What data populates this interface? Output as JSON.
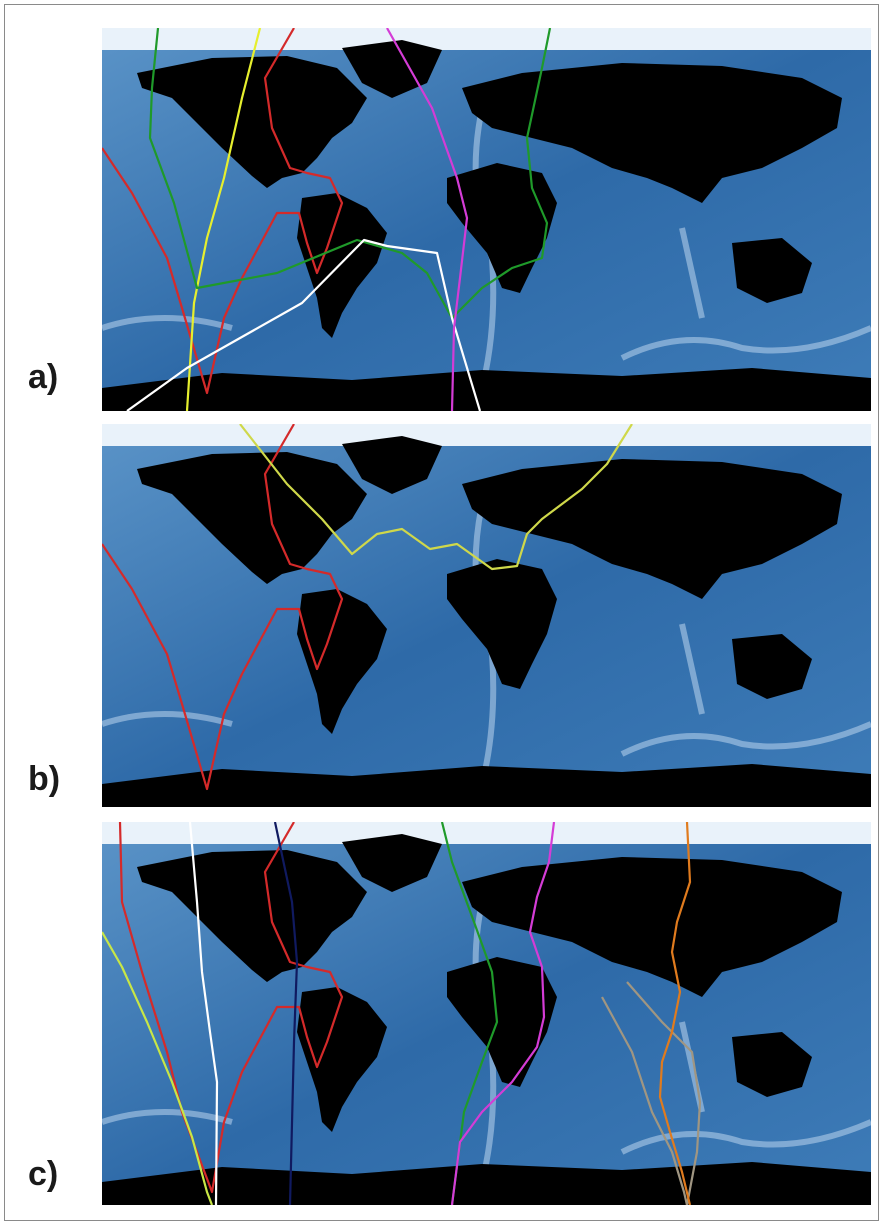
{
  "figure": {
    "panels": [
      {
        "id": "a",
        "label": "a)",
        "routes": [
          {
            "color": "#d42a2a"
          },
          {
            "color": "#e6ef2e"
          },
          {
            "color": "#1f9a2a"
          },
          {
            "color": "#ffffff"
          },
          {
            "color": "#d43cd6"
          }
        ]
      },
      {
        "id": "b",
        "label": "b)",
        "routes": [
          {
            "color": "#d42a2a"
          },
          {
            "color": "#cfd84a"
          }
        ]
      },
      {
        "id": "c",
        "label": "c)",
        "routes": [
          {
            "color": "#d42a2a"
          },
          {
            "color": "#c8e646"
          },
          {
            "color": "#ffffff"
          },
          {
            "color": "#101a60"
          },
          {
            "color": "#1f9a2a"
          },
          {
            "color": "#d43cd6"
          },
          {
            "color": "#a09682"
          },
          {
            "color": "#e07b1e"
          }
        ]
      }
    ],
    "colors": {
      "ocean_deep": "#1f5c9c",
      "ocean_mid": "#4a86c0",
      "ocean_shallow": "#cfe3f3",
      "land": "#000000",
      "ice": "#e9f2fa"
    }
  }
}
